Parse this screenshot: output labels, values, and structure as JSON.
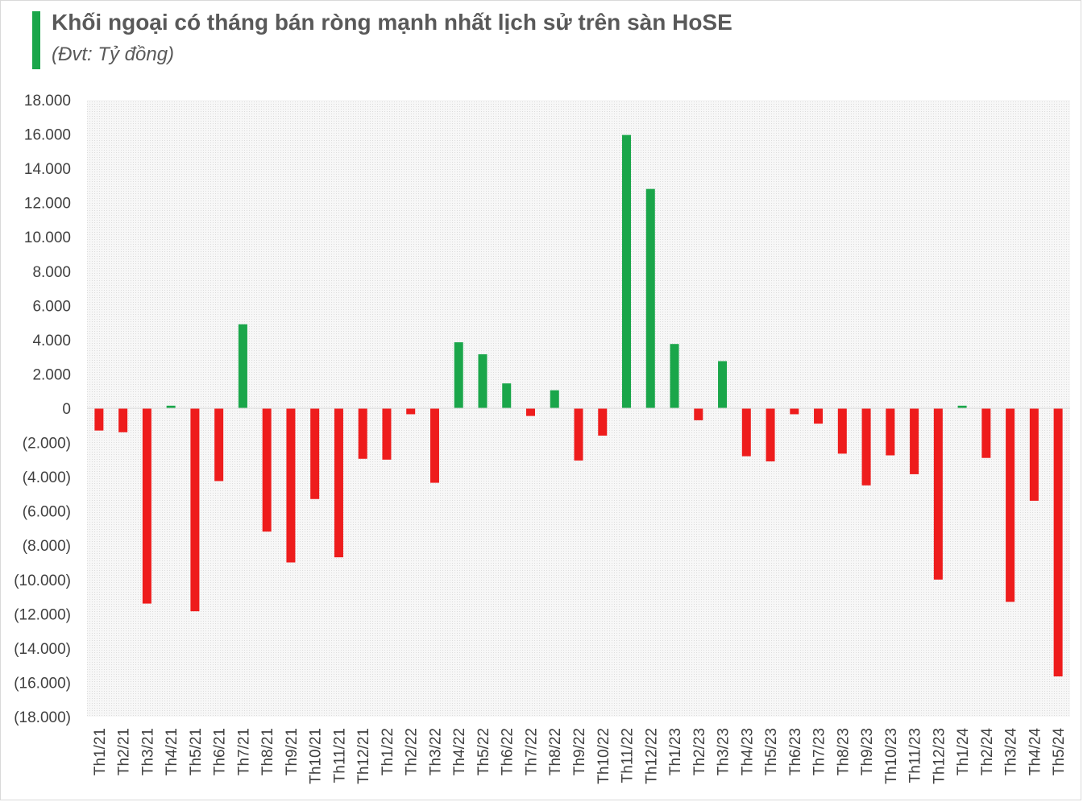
{
  "header": {
    "title": "Khối ngoại có tháng bán ròng mạnh nhất lịch sử trên sàn HoSE",
    "subtitle": "(Đvt: Tỷ đồng)"
  },
  "colors": {
    "positive": "#1aa64a",
    "negative": "#ee1c1c",
    "plot_background": "#f2f2f2",
    "accent": "#1aa64a"
  },
  "chart_data": {
    "type": "bar",
    "title": "Khối ngoại có tháng bán ròng mạnh nhất lịch sử trên sàn HoSE",
    "subtitle": "(Đvt: Tỷ đồng)",
    "xlabel": "",
    "ylabel": "",
    "ylim": [
      -18000,
      18000
    ],
    "ytick_step": 2000,
    "yticks": [
      "18.000",
      "16.000",
      "14.000",
      "12.000",
      "10.000",
      "8.000",
      "6.000",
      "4.000",
      "2.000",
      "0",
      "(2.000)",
      "(4.000)",
      "(6.000)",
      "(8.000)",
      "(10.000)",
      "(12.000)",
      "(14.000)",
      "(16.000)",
      "(18.000)"
    ],
    "grid": false,
    "categories": [
      "Th1/21",
      "Th2/21",
      "Th3/21",
      "Th4/21",
      "Th5/21",
      "Th6/21",
      "Th7/21",
      "Th8/21",
      "Th9/21",
      "Th10/21",
      "Th11/21",
      "Th12/21",
      "Th1/22",
      "Th2/22",
      "Th3/22",
      "Th4/22",
      "Th5/22",
      "Th6/22",
      "Th7/22",
      "Th8/22",
      "Th9/22",
      "Th10/22",
      "Th11/22",
      "Th12/22",
      "Th1/23",
      "Th2/23",
      "Th3/23",
      "Th4/23",
      "Th5/23",
      "Th6/23",
      "Th7/23",
      "Th8/23",
      "Th9/23",
      "Th10/23",
      "Th11/23",
      "Th12/23",
      "Th1/24",
      "Th2/24",
      "Th3/24",
      "Th4/24",
      "Th5/24"
    ],
    "values": [
      -1300,
      -1400,
      -11400,
      150,
      -11850,
      -4250,
      4900,
      -7200,
      -9000,
      -5300,
      -8700,
      -2950,
      -3000,
      -350,
      -4350,
      3850,
      3150,
      1450,
      -450,
      1050,
      -3050,
      -1600,
      15950,
      12800,
      3750,
      -700,
      2750,
      -2800,
      -3100,
      -350,
      -900,
      -2650,
      -4500,
      -2750,
      -3850,
      -10000,
      150,
      -2900,
      -11300,
      -5400,
      -15650
    ]
  }
}
